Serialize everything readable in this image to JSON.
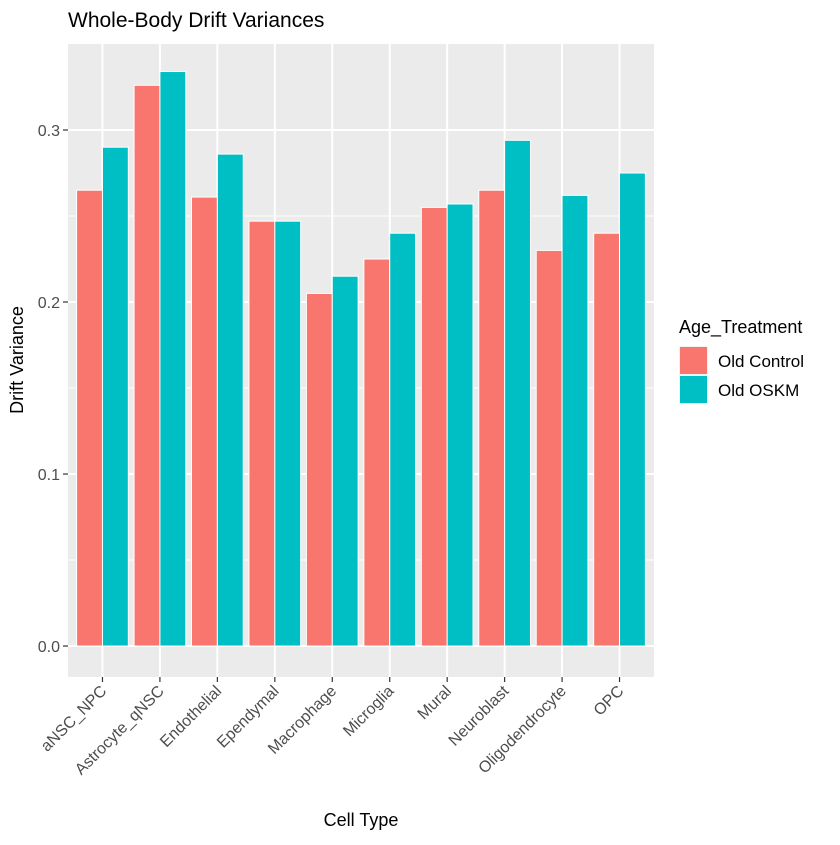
{
  "chart_data": {
    "type": "bar",
    "title": "Whole-Body Drift Variances",
    "xlabel": "Cell Type",
    "ylabel": "Drift Variance",
    "categories": [
      "aNSC_NPC",
      "Astrocyte_qNSC",
      "Endothelial",
      "Ependymal",
      "Macrophage",
      "Microglia",
      "Mural",
      "Neuroblast",
      "Oligodendrocyte",
      "OPC"
    ],
    "series": [
      {
        "name": "Old Control",
        "color": "#F8766D",
        "values": [
          0.265,
          0.326,
          0.261,
          0.247,
          0.205,
          0.225,
          0.255,
          0.265,
          0.23,
          0.24
        ]
      },
      {
        "name": "Old OSKM",
        "color": "#00BFC4",
        "values": [
          0.29,
          0.334,
          0.286,
          0.247,
          0.215,
          0.24,
          0.257,
          0.294,
          0.262,
          0.275
        ]
      }
    ],
    "ylim": [
      -0.018,
      0.35
    ],
    "yticks": [
      0.0,
      0.1,
      0.2,
      0.3
    ],
    "ytick_labels": [
      "0.0",
      "0.1",
      "0.2",
      "0.3"
    ],
    "grid": true,
    "panel_background": "#EBEBEB",
    "legend": {
      "title": "Age_Treatment",
      "placement": "right"
    }
  }
}
